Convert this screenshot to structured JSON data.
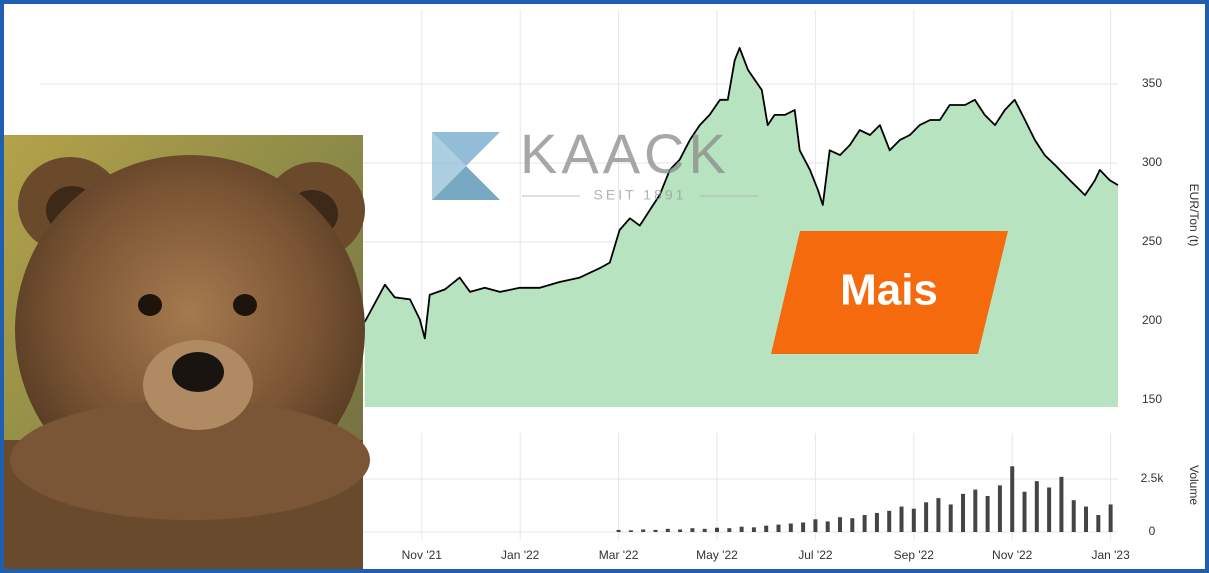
{
  "chart_data": [
    {
      "type": "line",
      "color": "#000000",
      "fill": "#b7e3c0",
      "ylabel": "EUR/Ton (t)",
      "logo": "KAACK",
      "logo_sub": "SEIT 1891",
      "badge": "Mais",
      "x": [
        -1.16,
        -0.75,
        -0.55,
        -0.24,
        -0.04,
        0.06,
        0.16,
        0.47,
        0.77,
        0.98,
        1.28,
        1.59,
        1.99,
        2.4,
        2.8,
        3.21,
        3.62,
        3.82,
        4.02,
        4.23,
        4.43,
        4.63,
        4.84,
        5.04,
        5.24,
        5.45,
        5.65,
        5.85,
        6.06,
        6.22,
        6.36,
        6.46,
        6.63,
        6.77,
        6.91,
        7.03,
        7.17,
        7.38,
        7.58,
        7.68,
        7.89,
        8.05,
        8.15,
        8.29,
        8.5,
        8.7,
        8.9,
        9.11,
        9.31,
        9.51,
        9.72,
        9.92,
        10.12,
        10.33,
        10.53,
        10.73,
        11.04,
        11.24,
        11.44,
        11.65,
        11.85,
        12.05,
        12.26,
        12.46,
        12.66,
        12.87,
        13.17,
        13.48,
        13.68,
        13.78,
        13.98,
        14.15
      ],
      "values": [
        199.4,
        223,
        215,
        213.7,
        201,
        189,
        216.5,
        220,
        227.5,
        218.4,
        221,
        218.4,
        221,
        221,
        224.7,
        227.5,
        233.5,
        237,
        257.6,
        265,
        260.4,
        270,
        280,
        295.6,
        302,
        314.6,
        324,
        330.4,
        340,
        340,
        365,
        372.8,
        358.9,
        352.5,
        346.2,
        324,
        330.4,
        330.4,
        333.5,
        308,
        295.6,
        283,
        273.4,
        308,
        305,
        311.4,
        320.8,
        317.7,
        324,
        308,
        314.6,
        317.7,
        324,
        327.2,
        327.2,
        336.7,
        336.7,
        340,
        330.4,
        324,
        333.5,
        340,
        327.2,
        314.6,
        305,
        298.7,
        289.2,
        279.7,
        289,
        295.6,
        289.2,
        286
      ],
      "xlim": [
        -7.76,
        14.15
      ],
      "ylim": [
        145.6,
        396.8
      ],
      "yticks": [
        150,
        200,
        250,
        300,
        350
      ],
      "grid": true
    },
    {
      "type": "bar",
      "color": "#444444",
      "ylabel": "Volume",
      "x": [
        4,
        4.25,
        4.5,
        4.75,
        5,
        5.25,
        5.5,
        5.75,
        6,
        6.25,
        6.5,
        6.75,
        7,
        7.25,
        7.5,
        7.75,
        8,
        8.25,
        8.5,
        8.75,
        9,
        9.25,
        9.5,
        9.75,
        10,
        10.25,
        10.5,
        10.75,
        11,
        11.25,
        11.5,
        11.75,
        12,
        12.25,
        12.5,
        12.75,
        13,
        13.25,
        13.5,
        13.75,
        14
      ],
      "values": [
        100,
        80,
        120,
        100,
        150,
        120,
        180,
        150,
        200,
        180,
        250,
        220,
        300,
        350,
        400,
        450,
        600,
        500,
        700,
        650,
        800,
        900,
        1000,
        1200,
        1100,
        1400,
        1600,
        1300,
        1800,
        2000,
        1700,
        2200,
        3100,
        1900,
        2400,
        2100,
        2600,
        1500,
        1200,
        800,
        1300
      ],
      "xlim": [
        -7.76,
        14.15
      ],
      "ylim": [
        -377,
        4670
      ],
      "yticks": [
        0,
        {
          "value": 2500,
          "label": "2.5k"
        }
      ],
      "xticks": [
        {
          "value": 0,
          "label": "Nov '21"
        },
        {
          "value": 2,
          "label": "Jan '22"
        },
        {
          "value": 4,
          "label": "Mar '22"
        },
        {
          "value": 6,
          "label": "May '22"
        },
        {
          "value": 8,
          "label": "Jul '22"
        },
        {
          "value": 10,
          "label": "Sep '22"
        },
        {
          "value": 12,
          "label": "Nov '22"
        },
        {
          "value": 14,
          "label": "Jan '23"
        }
      ],
      "grid": true
    }
  ]
}
